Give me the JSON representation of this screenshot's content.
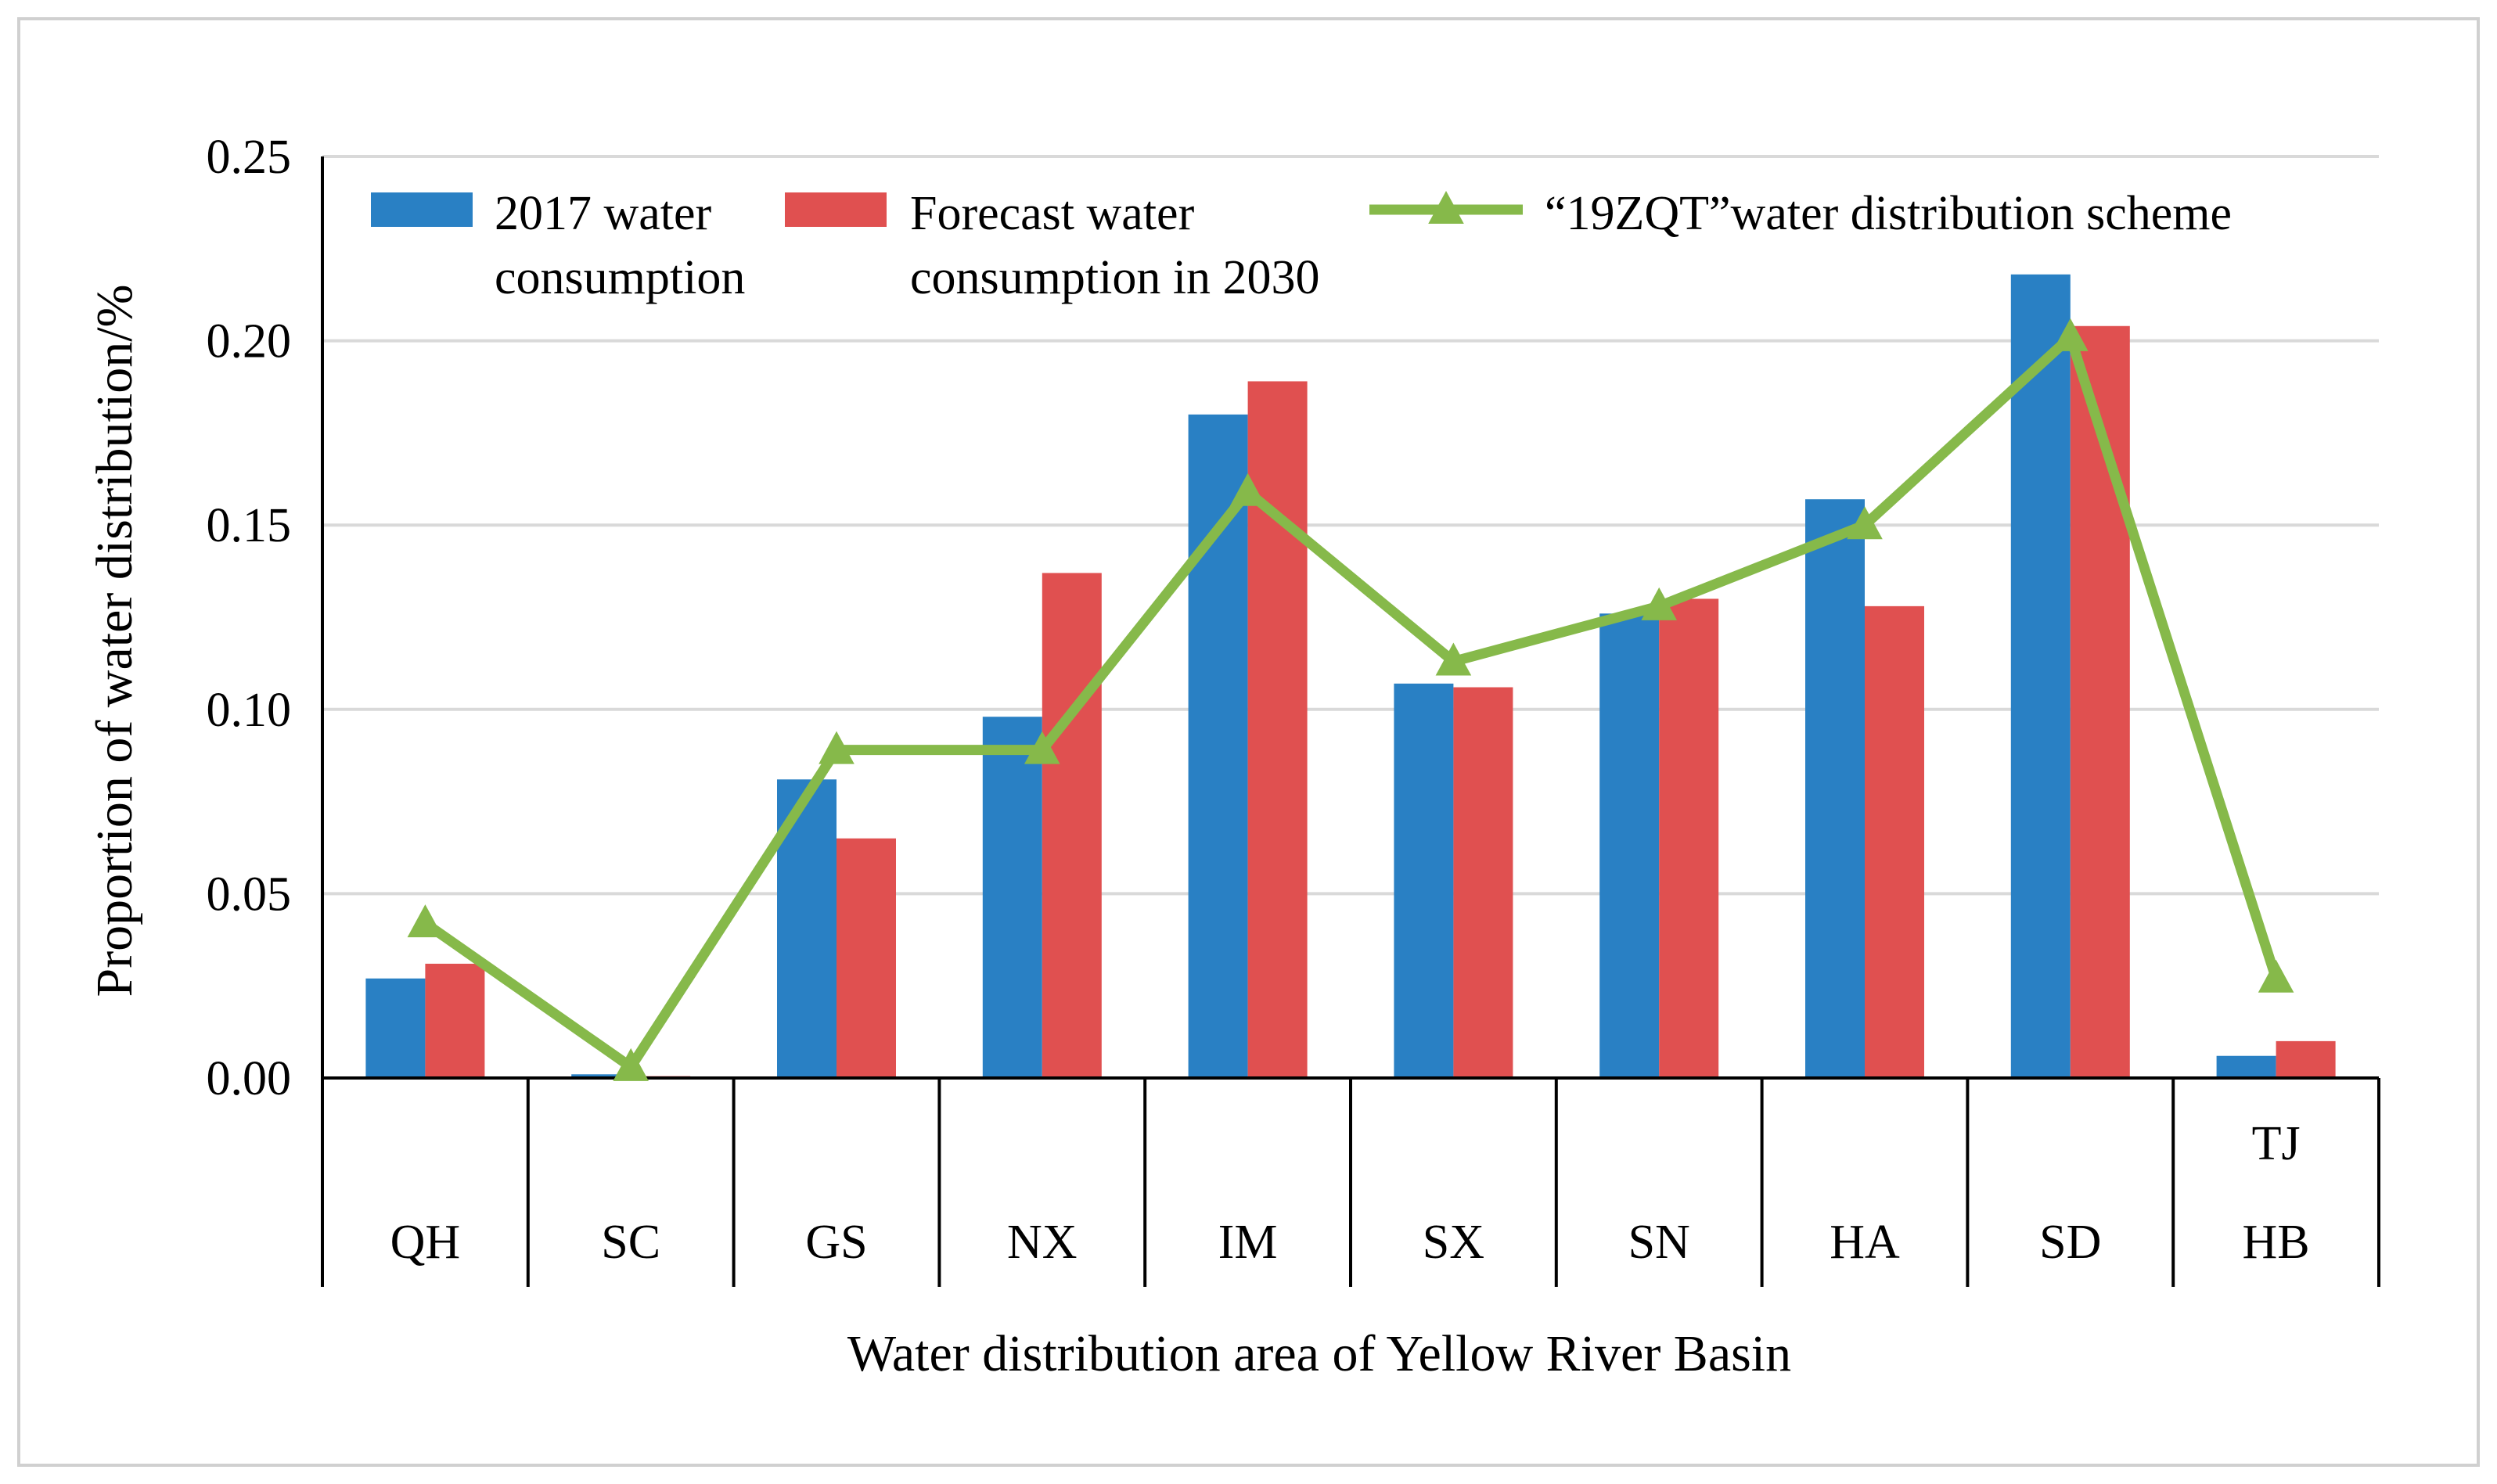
{
  "chart_data": {
    "type": "bar",
    "title": "",
    "xlabel": "Water distribution area of Yellow River Basin",
    "ylabel": "Proportion of water distribution/%",
    "ylim": [
      0,
      0.25
    ],
    "yticks": [
      "0.00",
      "0.05",
      "0.10",
      "0.15",
      "0.20",
      "0.25"
    ],
    "grid": true,
    "legend_position": "top",
    "categories": [
      "QH",
      "SC",
      "GS",
      "NX",
      "IM",
      "SX",
      "SN",
      "HA",
      "SD",
      "HB"
    ],
    "extra_label": "TJ",
    "series": [
      {
        "name": "2017 water consumption",
        "name_lines": [
          "2017 water",
          "consumption"
        ],
        "kind": "bar",
        "color": "#2980C4",
        "values": [
          0.027,
          0.001,
          0.081,
          0.098,
          0.18,
          0.107,
          0.126,
          0.157,
          0.218,
          0.006
        ]
      },
      {
        "name": "Forecast water consumption in 2030",
        "name_lines": [
          "Forecast water",
          "consumption in 2030"
        ],
        "kind": "bar",
        "color": "#E05050",
        "values": [
          0.031,
          0.0005,
          0.065,
          0.137,
          0.189,
          0.106,
          0.13,
          0.128,
          0.204,
          0.01
        ]
      },
      {
        "name": "“19ZQT”water distribution scheme",
        "name_lines": [
          "“19ZQT”water distribution scheme"
        ],
        "kind": "line",
        "color": "#86B94A",
        "marker": "triangle",
        "values": [
          0.042,
          0.003,
          0.089,
          0.089,
          0.159,
          0.113,
          0.128,
          0.15,
          0.201,
          0.027
        ]
      }
    ]
  }
}
